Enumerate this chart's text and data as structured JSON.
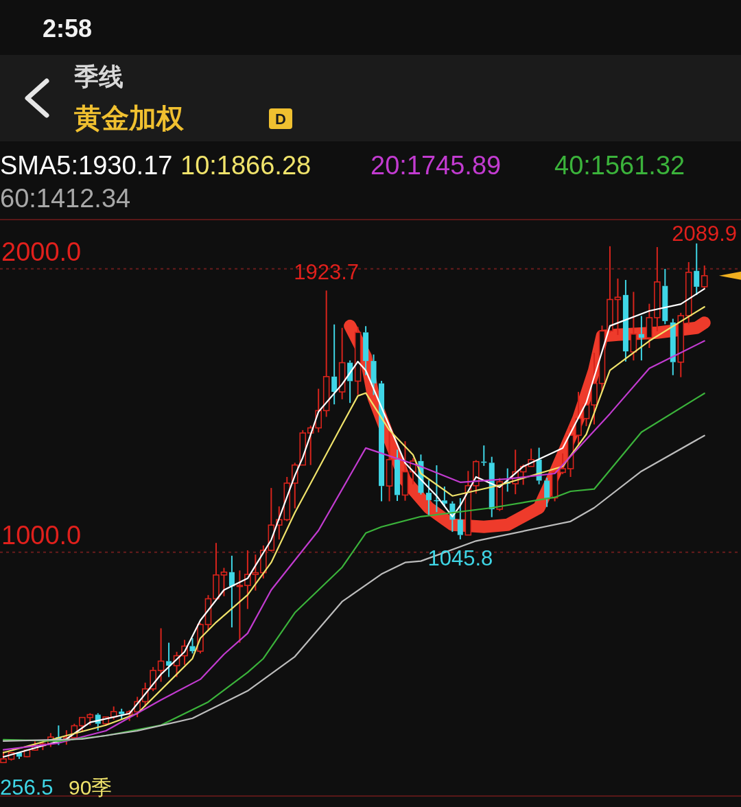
{
  "chart_data": {
    "type": "candlestick",
    "title": "季线",
    "subtitle": "黄金加权",
    "categories": [
      null,
      null,
      null,
      null,
      null,
      null,
      null,
      null,
      null,
      null,
      null,
      null,
      null,
      null,
      null,
      null,
      null,
      null,
      null,
      null,
      null,
      null,
      null,
      null,
      null,
      null,
      null,
      null,
      null,
      null,
      null,
      null,
      null,
      null,
      null,
      null,
      null,
      null,
      null,
      null,
      null,
      null,
      null,
      null,
      null,
      null,
      null,
      null,
      null,
      null,
      null,
      null,
      null,
      null,
      null,
      null,
      null,
      null,
      null,
      null,
      null,
      null,
      null,
      null,
      null,
      null,
      null,
      null,
      null,
      null,
      null,
      null,
      null,
      null,
      null,
      null,
      null,
      null,
      null,
      null,
      null,
      null,
      null,
      null,
      null,
      null,
      null,
      null,
      null,
      null
    ],
    "ohlc": [
      [
        258,
        297,
        256.5,
        271
      ],
      [
        270,
        295,
        265,
        293
      ],
      [
        293,
        294,
        271,
        279
      ],
      [
        279,
        305,
        277,
        302
      ],
      [
        302,
        333,
        300,
        318
      ],
      [
        318,
        335,
        302,
        324
      ],
      [
        324,
        362,
        313,
        348
      ],
      [
        348,
        389,
        320,
        336
      ],
      [
        336,
        372,
        321,
        346
      ],
      [
        346,
        395,
        342,
        388
      ],
      [
        388,
        418,
        366,
        417
      ],
      [
        417,
        432,
        390,
        427
      ],
      [
        427,
        432,
        371,
        395
      ],
      [
        395,
        420,
        387,
        419
      ],
      [
        419,
        456,
        410,
        438
      ],
      [
        438,
        448,
        411,
        429
      ],
      [
        429,
        443,
        405,
        437
      ],
      [
        437,
        490,
        418,
        473
      ],
      [
        473,
        540,
        455,
        518
      ],
      [
        518,
        595,
        510,
        583
      ],
      [
        583,
        732,
        543,
        616
      ],
      [
        616,
        681,
        560,
        600
      ],
      [
        600,
        649,
        560,
        635
      ],
      [
        635,
        691,
        603,
        669
      ],
      [
        669,
        697,
        643,
        651
      ],
      [
        651,
        750,
        643,
        745
      ],
      [
        745,
        849,
        724,
        836
      ],
      [
        836,
        1033,
        830,
        920
      ],
      [
        920,
        945,
        845,
        930
      ],
      [
        930,
        988,
        735,
        880
      ],
      [
        880,
        936,
        681,
        883
      ],
      [
        883,
        1007,
        800,
        922
      ],
      [
        922,
        992,
        865,
        928
      ],
      [
        928,
        1024,
        908,
        1007
      ],
      [
        1007,
        1227,
        1003,
        1096
      ],
      [
        1096,
        1162,
        1045,
        1115
      ],
      [
        1115,
        1266,
        1110,
        1244
      ],
      [
        1244,
        1316,
        1155,
        1308
      ],
      [
        1308,
        1431,
        1307,
        1421
      ],
      [
        1421,
        1447,
        1308,
        1439
      ],
      [
        1439,
        1577,
        1423,
        1500
      ],
      [
        1500,
        1923.7,
        1478,
        1620
      ],
      [
        1620,
        1804,
        1522,
        1566
      ],
      [
        1566,
        1792,
        1540,
        1669
      ],
      [
        1669,
        1677,
        1527,
        1604
      ],
      [
        1604,
        1795,
        1556,
        1776
      ],
      [
        1776,
        1798,
        1625,
        1675
      ],
      [
        1675,
        1698,
        1555,
        1596
      ],
      [
        1596,
        1605,
        1180,
        1234
      ],
      [
        1234,
        1434,
        1180,
        1327
      ],
      [
        1327,
        1362,
        1181,
        1202
      ],
      [
        1202,
        1392,
        1182,
        1284
      ],
      [
        1284,
        1332,
        1240,
        1322
      ],
      [
        1322,
        1345,
        1204,
        1210
      ],
      [
        1210,
        1255,
        1131,
        1184
      ],
      [
        1184,
        1307,
        1142,
        1183
      ],
      [
        1183,
        1232,
        1162,
        1172
      ],
      [
        1172,
        1180,
        1072,
        1115
      ],
      [
        1115,
        1191,
        1045.8,
        1061
      ],
      [
        1061,
        1287,
        1061,
        1235
      ],
      [
        1235,
        1325,
        1207,
        1320
      ],
      [
        1320,
        1377,
        1305,
        1316
      ],
      [
        1316,
        1337,
        1124,
        1152
      ],
      [
        1152,
        1262,
        1146,
        1249
      ],
      [
        1249,
        1296,
        1214,
        1242
      ],
      [
        1242,
        1362,
        1205,
        1284
      ],
      [
        1284,
        1310,
        1238,
        1303
      ],
      [
        1303,
        1366,
        1302,
        1327
      ],
      [
        1327,
        1369,
        1240,
        1253
      ],
      [
        1253,
        1263,
        1160,
        1192
      ],
      [
        1192,
        1287,
        1180,
        1282
      ],
      [
        1282,
        1349,
        1276,
        1295
      ],
      [
        1295,
        1442,
        1266,
        1413
      ],
      [
        1413,
        1566,
        1381,
        1472
      ],
      [
        1472,
        1525,
        1445,
        1520
      ],
      [
        1520,
        1704,
        1451,
        1596
      ],
      [
        1596,
        1800,
        1567,
        1781
      ],
      [
        1781,
        2080,
        1776,
        1892
      ],
      [
        1892,
        1966,
        1767,
        1900
      ],
      [
        1908,
        1961,
        1673,
        1709
      ],
      [
        1707,
        1919,
        1677,
        1770
      ],
      [
        1770,
        1834,
        1677,
        1757
      ],
      [
        1757,
        1877,
        1721,
        1828
      ],
      [
        1828,
        2077,
        1780,
        1954
      ],
      [
        1940,
        2000,
        1805,
        1816
      ],
      [
        1811,
        1824,
        1625,
        1671
      ],
      [
        1671,
        1845,
        1618,
        1835
      ],
      [
        1835,
        2024,
        1805,
        1988
      ],
      [
        1993,
        2089.9,
        1908,
        1937
      ],
      [
        1937,
        2012,
        1930,
        1976
      ]
    ],
    "series": [
      {
        "name": "SMA5:1930.17",
        "type": "line",
        "color": "#ffffff",
        "values": [
          278,
          null,
          null,
          null,
          null,
          null,
          null,
          null,
          341,
          null,
          null,
          400,
          null,
          null,
          null,
          null,
          431,
          null,
          null,
          null,
          569,
          null,
          null,
          649,
          null,
          760,
          null,
          null,
          867,
          null,
          null,
          908,
          null,
          null,
          1044,
          null,
          null,
          1271,
          1334,
          null,
          1496,
          null,
          null,
          1593,
          null,
          1673,
          1642,
          null,
          null,
          null,
          null,
          1315,
          null,
          null,
          null,
          1199,
          null,
          1126,
          1165,
          null,
          1266,
          null,
          null,
          1230,
          null,
          null,
          1303,
          null,
          null,
          null,
          null,
          1368,
          null,
          null,
          1528,
          null,
          null,
          1799,
          null,
          null,
          null,
          null,
          1852,
          null,
          null,
          null,
          1876,
          null,
          null,
          1930
        ]
      },
      {
        "name": "10:1866.28",
        "type": "line",
        "color": "#f0e36b",
        "values": [
          293,
          null,
          null,
          null,
          null,
          null,
          null,
          null,
          353,
          null,
          null,
          null,
          null,
          390,
          null,
          null,
          null,
          431,
          null,
          null,
          null,
          null,
          null,
          null,
          625,
          697,
          null,
          753,
          null,
          null,
          null,
          850,
          null,
          null,
          964,
          null,
          null,
          1140,
          null,
          null,
          null,
          null,
          null,
          1450,
          null,
          1552,
          1562,
          null,
          null,
          1431,
          null,
          null,
          1344,
          1278,
          null,
          null,
          null,
          1199,
          null,
          null,
          null,
          null,
          null,
          1237,
          null,
          null,
          null,
          null,
          null,
          null,
          null,
          1303,
          null,
          null,
          1416,
          null,
          null,
          1642,
          null,
          null,
          null,
          null,
          1746,
          null,
          null,
          null,
          null,
          null,
          null,
          1866
        ]
      },
      {
        "name": "20:1745.89",
        "type": "line",
        "color": "#c23bd0",
        "values": [
          303,
          null,
          null,
          null,
          null,
          null,
          null,
          327,
          null,
          null,
          null,
          null,
          null,
          370,
          null,
          null,
          null,
          null,
          null,
          null,
          479,
          null,
          null,
          null,
          null,
          552,
          null,
          null,
          640,
          null,
          null,
          714,
          null,
          null,
          867,
          null,
          null,
          null,
          null,
          null,
          1077,
          null,
          null,
          null,
          null,
          null,
          1368,
          null,
          null,
          null,
          null,
          null,
          null,
          1303,
          null,
          null,
          null,
          null,
          1247,
          null,
          null,
          null,
          null,
          null,
          1259,
          null,
          null,
          null,
          null,
          null,
          1278,
          null,
          null,
          null,
          null,
          null,
          null,
          1489,
          null,
          null,
          null,
          null,
          1649,
          null,
          null,
          null,
          null,
          null,
          null,
          1746
        ]
      },
      {
        "name": "40:1561.32",
        "type": "line",
        "color": "#3bb33b",
        "values": [
          339,
          null,
          null,
          null,
          null,
          null,
          null,
          334,
          null,
          null,
          null,
          null,
          null,
          353,
          null,
          null,
          null,
          null,
          null,
          null,
          390,
          null,
          null,
          null,
          null,
          null,
          472,
          null,
          null,
          null,
          null,
          576,
          null,
          625,
          null,
          null,
          null,
          787,
          null,
          null,
          null,
          null,
          null,
          947,
          null,
          null,
          1068,
          null,
          1090,
          null,
          null,
          null,
          null,
          1126,
          null,
          null,
          null,
          null,
          null,
          null,
          null,
          null,
          1157,
          null,
          null,
          null,
          null,
          null,
          null,
          null,
          1194,
          null,
          1215,
          null,
          null,
          1223,
          null,
          null,
          null,
          null,
          null,
          1424,
          null,
          null,
          null,
          null,
          null,
          null,
          null,
          1561
        ]
      },
      {
        "name": "60:1412.34",
        "type": "line",
        "color": "#bdbdbd",
        "values": [
          334,
          null,
          null,
          null,
          null,
          null,
          null,
          null,
          null,
          null,
          341,
          null,
          null,
          null,
          null,
          null,
          null,
          370,
          null,
          null,
          null,
          null,
          null,
          null,
          414,
          null,
          null,
          null,
          null,
          null,
          null,
          511,
          null,
          null,
          null,
          null,
          null,
          632,
          null,
          null,
          null,
          null,
          null,
          826,
          null,
          null,
          null,
          null,
          923,
          null,
          null,
          964,
          null,
          969,
          null,
          null,
          null,
          null,
          null,
          null,
          1040,
          null,
          null,
          null,
          null,
          null,
          null,
          null,
          null,
          null,
          null,
          null,
          1109,
          null,
          null,
          1157,
          null,
          null,
          null,
          null,
          null,
          1286,
          null,
          null,
          null,
          null,
          null,
          null,
          null,
          1412
        ]
      },
      {
        "type": "line",
        "color": "#ee3b2b",
        "values": [
          null,
          null,
          null,
          null,
          null,
          null,
          null,
          null,
          null,
          null,
          null,
          null,
          null,
          null,
          null,
          null,
          null,
          null,
          null,
          null,
          null,
          null,
          null,
          null,
          null,
          null,
          null,
          null,
          null,
          null,
          null,
          null,
          null,
          null,
          null,
          null,
          null,
          null,
          null,
          null,
          null,
          null,
          null,
          null,
          1799,
          null,
          1690,
          1545,
          null,
          1400,
          null,
          1254,
          null,
          null,
          1157,
          null,
          null,
          1097,
          null,
          null,
          null,
          1090,
          null,
          null,
          1097,
          null,
          null,
          null,
          1157,
          null,
          1278,
          null,
          null,
          1472,
          null,
          1642,
          1763,
          null,
          1768,
          null,
          null,
          null,
          null,
          1775,
          null,
          null,
          null,
          null,
          1792,
          1810
        ]
      }
    ],
    "ylim": [
      140,
      2174
    ],
    "yticks": [
      {
        "value": 1000,
        "label": "1000.0"
      },
      {
        "value": 2000,
        "label": "2000.0"
      }
    ],
    "grid": "y",
    "legend": "top",
    "annotations": [
      {
        "text": "1923.7",
        "y": 1923.7
      },
      {
        "text": "1045.8",
        "y": 1045.8
      },
      "2089.9",
      "256.5",
      "90季",
      "D",
      "2:58"
    ]
  }
}
